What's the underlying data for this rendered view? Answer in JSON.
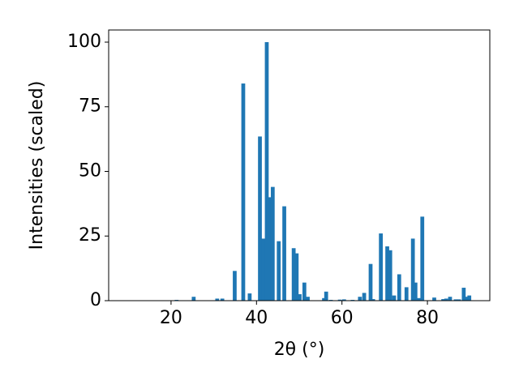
{
  "chart_data": {
    "type": "bar",
    "xlabel": "2θ (°)",
    "ylabel": "Intensities (scaled)",
    "color": "#1f77b4",
    "x": [
      21.3,
      25.3,
      30.8,
      32.0,
      34.9,
      36.9,
      38.4,
      40.8,
      41.6,
      42.4,
      43.2,
      43.8,
      45.2,
      46.5,
      48.7,
      49.4,
      50.1,
      51.2,
      52.0,
      55.8,
      56.3,
      57.4,
      59.5,
      60.5,
      62.5,
      64.2,
      65.2,
      66.7,
      67.3,
      69.1,
      70.6,
      71.3,
      72.2,
      73.4,
      75.1,
      76.6,
      77.2,
      78.0,
      78.8,
      81.6,
      83.7,
      84.4,
      85.3,
      86.6,
      87.4,
      88.5,
      89.1,
      89.8
    ],
    "values": [
      0.3,
      1.5,
      0.8,
      0.8,
      11.5,
      84,
      2.8,
      63.5,
      24,
      100,
      40,
      44,
      23,
      36.5,
      20.3,
      18.3,
      2.5,
      7,
      1.5,
      1.0,
      3.5,
      0.3,
      0.4,
      0.5,
      0.3,
      1.5,
      3,
      14.2,
      0.6,
      26,
      21,
      19.5,
      2,
      10.2,
      5.2,
      24,
      7,
      1,
      32.5,
      1.2,
      0.6,
      0.8,
      1.5,
      0.5,
      0.5,
      5,
      1.5,
      2
    ],
    "xlim": [
      5.4,
      94.6
    ],
    "ylim": [
      0,
      104.7
    ],
    "xticks": [
      20,
      40,
      60,
      80
    ],
    "yticks": [
      0,
      25,
      50,
      75,
      100
    ]
  }
}
